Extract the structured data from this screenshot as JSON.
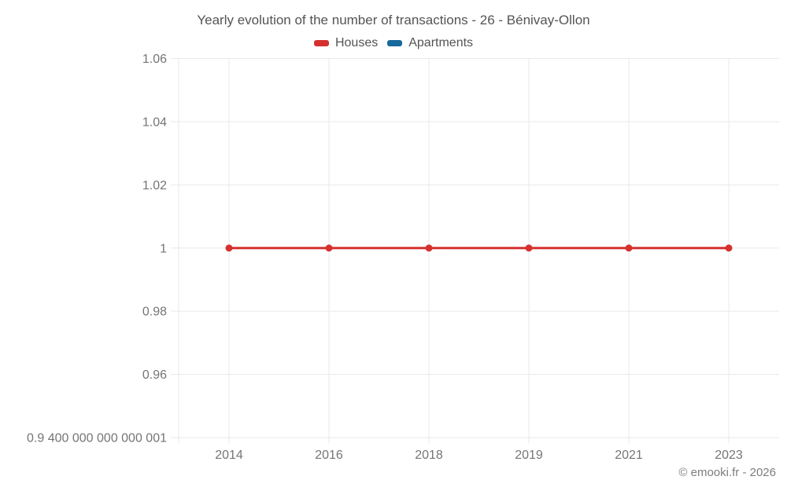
{
  "chart_data": {
    "type": "line",
    "title": "Yearly evolution of the number of transactions - 26 - Bénivay-Ollon",
    "categories": [
      "2014",
      "2016",
      "2018",
      "2019",
      "2021",
      "2023"
    ],
    "series": [
      {
        "name": "Houses",
        "color": "#d5312e",
        "values": [
          1,
          1,
          1,
          1,
          1,
          1
        ]
      },
      {
        "name": "Apartments",
        "color": "#16699c",
        "values": []
      }
    ],
    "y_ticks": [
      {
        "value": 1.06,
        "label": "1.06"
      },
      {
        "value": 1.04,
        "label": "1.04"
      },
      {
        "value": 1.02,
        "label": "1.02"
      },
      {
        "value": 1.0,
        "label": "1"
      },
      {
        "value": 0.98,
        "label": "0.98"
      },
      {
        "value": 0.96,
        "label": "0.96"
      },
      {
        "value": 0.94,
        "label": "0.9 400 000 000 000 001"
      }
    ],
    "ylim": [
      0.94,
      1.06
    ],
    "grid": true,
    "legend_position": "top",
    "colors": {
      "gridline": "#e9e9e9",
      "tick_text": "#757575",
      "title_text": "#545454"
    }
  },
  "footer": {
    "copyright": "© emooki.fr - 2026"
  }
}
